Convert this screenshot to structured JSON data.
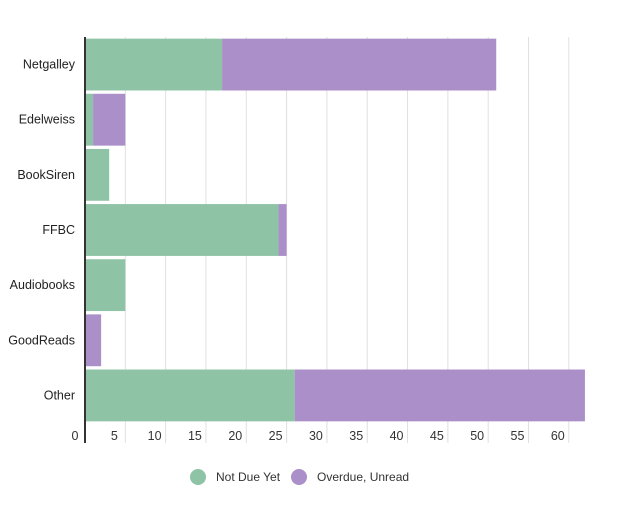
{
  "chart_data": {
    "type": "bar",
    "orientation": "horizontal",
    "stacked": true,
    "categories": [
      "Netgalley",
      "Edelweiss",
      "BookSiren",
      "FFBC",
      "Audiobooks",
      "GoodReads",
      "Other"
    ],
    "series": [
      {
        "name": "Not Due Yet",
        "color": "#8ec3a6",
        "values": [
          17,
          1,
          3,
          24,
          5,
          0,
          26
        ]
      },
      {
        "name": "Overdue, Unread",
        "color": "#ab8fc8",
        "values": [
          34,
          4,
          0,
          1,
          0,
          2,
          36
        ]
      }
    ],
    "xlim": [
      0,
      63
    ],
    "xticks": [
      0,
      5,
      10,
      15,
      20,
      25,
      30,
      35,
      40,
      45,
      50,
      55,
      60
    ],
    "grid": true,
    "legend_position": "bottom"
  }
}
